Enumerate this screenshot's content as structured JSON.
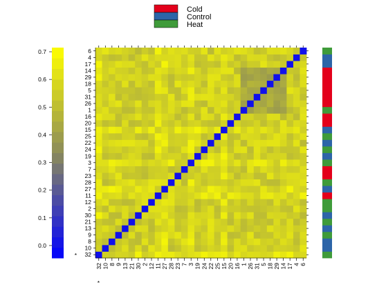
{
  "chart_data": {
    "type": "heatmap",
    "title": "",
    "labels": [
      "32",
      "10",
      "8",
      "9",
      "13",
      "21",
      "30",
      "2",
      "12",
      "11",
      "27",
      "28",
      "23",
      "7",
      "3",
      "19",
      "24",
      "22",
      "25",
      "15",
      "20",
      "16",
      "1",
      "26",
      "31",
      "5",
      "18",
      "29",
      "14",
      "17",
      "4",
      "6"
    ],
    "label_marks": [
      "*",
      "",
      "",
      "",
      "",
      "",
      "",
      "",
      "",
      "",
      "",
      "",
      "",
      "",
      "",
      "",
      "",
      "",
      "",
      "",
      "",
      "",
      "",
      "",
      "",
      "",
      "",
      "",
      "",
      "",
      "",
      ""
    ],
    "groups": [
      "Heat",
      "Control",
      "Control",
      "Heat",
      "Control",
      "Heat",
      "Control",
      "Heat",
      "Heat",
      "Cold",
      "Control",
      "Heat",
      "Cold",
      "Cold",
      "Heat",
      "Control",
      "Heat",
      "Control",
      "Heat",
      "Control",
      "Cold",
      "Cold",
      "Heat",
      "Cold",
      "Cold",
      "Cold",
      "Cold",
      "Cold",
      "Cold",
      "Control",
      "Control",
      "Heat"
    ],
    "group_legend": [
      {
        "name": "Cold",
        "color": "#e3001b"
      },
      {
        "name": "Control",
        "color": "#2d65a8"
      },
      {
        "name": "Heat",
        "color": "#3f9b3a"
      }
    ],
    "colorbar": {
      "ticks": [
        "0.0",
        "0.1",
        "0.2",
        "0.3",
        "0.4",
        "0.5",
        "0.6",
        "0.7"
      ],
      "vmin": -0.045,
      "vmax": 0.715,
      "low_color": "#0000ff",
      "mid_color": "#8b8b5a",
      "high_color": "#ffff00"
    },
    "diagonal_value": 0.0,
    "cluster_core": {
      "from_label": "1",
      "to_label": "14",
      "value": 0.42
    },
    "base_value": 0.56,
    "hot_labels": [
      "11",
      "32",
      "27",
      "15",
      "3"
    ]
  }
}
